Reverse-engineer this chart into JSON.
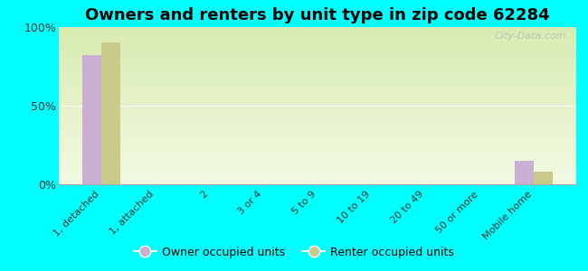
{
  "title": "Owners and renters by unit type in zip code 62284",
  "categories": [
    "1, detached",
    "1, attached",
    "2",
    "3 or 4",
    "5 to 9",
    "10 to 19",
    "20 to 49",
    "50 or more",
    "Mobile home"
  ],
  "owner_values": [
    82,
    0,
    0,
    0,
    0,
    0,
    0,
    0,
    15
  ],
  "renter_values": [
    90,
    0,
    0,
    0,
    0,
    0,
    0,
    0,
    8
  ],
  "owner_color": "#c9afd4",
  "renter_color": "#c8cc88",
  "background_color": "#00ffff",
  "yticks": [
    0,
    50,
    100
  ],
  "ylim": [
    0,
    100
  ],
  "bar_width": 0.35,
  "watermark": "City-Data.com",
  "legend_owner": "Owner occupied units",
  "legend_renter": "Renter occupied units",
  "title_fontsize": 13,
  "tick_fontsize": 8,
  "ytick_fontsize": 9
}
